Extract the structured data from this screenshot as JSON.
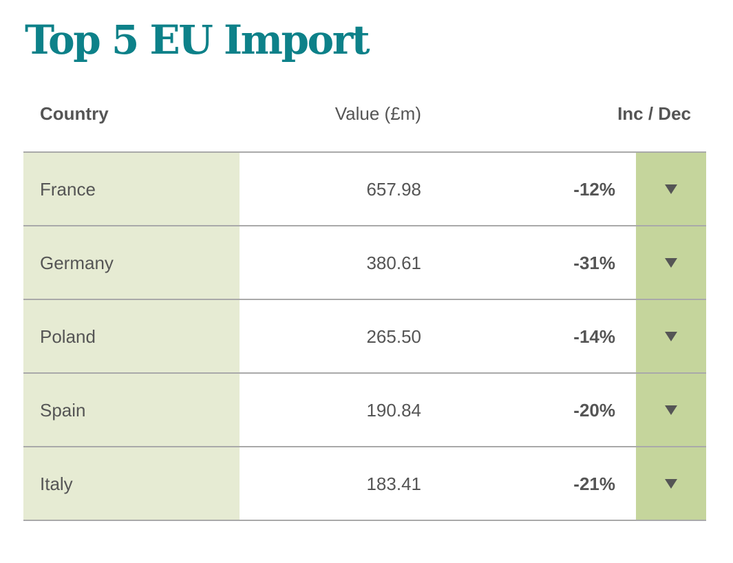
{
  "title": "Top 5 EU Import",
  "headers": {
    "country": "Country",
    "value": "Value (£m)",
    "change": "Inc / Dec"
  },
  "colors": {
    "title": "#0d8189",
    "country_bg": "#e6ebd3",
    "arrow_bg": "#c5d59c",
    "text": "#555555"
  },
  "chart_data": {
    "type": "table",
    "title": "Top 5 EU Import",
    "columns": [
      "Country",
      "Value (£m)",
      "Inc / Dec"
    ],
    "rows": [
      {
        "country": "France",
        "value": "657.98",
        "change": "-12%",
        "direction": "down-arrow-icon"
      },
      {
        "country": "Germany",
        "value": "380.61",
        "change": "-31%",
        "direction": "down-arrow-icon"
      },
      {
        "country": "Poland",
        "value": "265.50",
        "change": "-14%",
        "direction": "down-arrow-icon"
      },
      {
        "country": "Spain",
        "value": "190.84",
        "change": "-20%",
        "direction": "down-arrow-icon"
      },
      {
        "country": "Italy",
        "value": "183.41",
        "change": "-21%",
        "direction": "down-arrow-icon"
      }
    ]
  }
}
